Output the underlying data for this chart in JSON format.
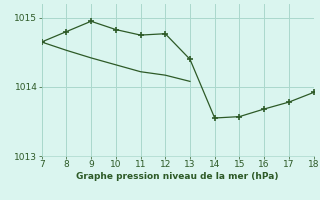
{
  "line1_x": [
    7,
    8,
    9,
    10,
    11,
    12,
    13,
    14,
    15,
    16,
    17,
    18
  ],
  "line1_y": [
    1014.65,
    1014.8,
    1014.95,
    1014.83,
    1014.75,
    1014.77,
    1014.4,
    1013.55,
    1013.57,
    1013.68,
    1013.78,
    1013.92
  ],
  "line2_x": [
    7,
    8,
    9,
    10,
    11,
    12,
    13
  ],
  "line2_y": [
    1014.65,
    1014.53,
    1014.42,
    1014.32,
    1014.22,
    1014.17,
    1014.08
  ],
  "line_color": "#2d5a27",
  "bg_color": "#daf5ef",
  "grid_color": "#aad8cc",
  "xlabel": "Graphe pression niveau de la mer (hPa)",
  "xlim": [
    7,
    18
  ],
  "ylim": [
    1013.0,
    1015.2
  ],
  "yticks": [
    1013,
    1014,
    1015
  ],
  "xticks": [
    7,
    8,
    9,
    10,
    11,
    12,
    13,
    14,
    15,
    16,
    17,
    18
  ],
  "marker": "+",
  "markersize": 4,
  "markeredgewidth": 1.2,
  "linewidth": 0.9
}
